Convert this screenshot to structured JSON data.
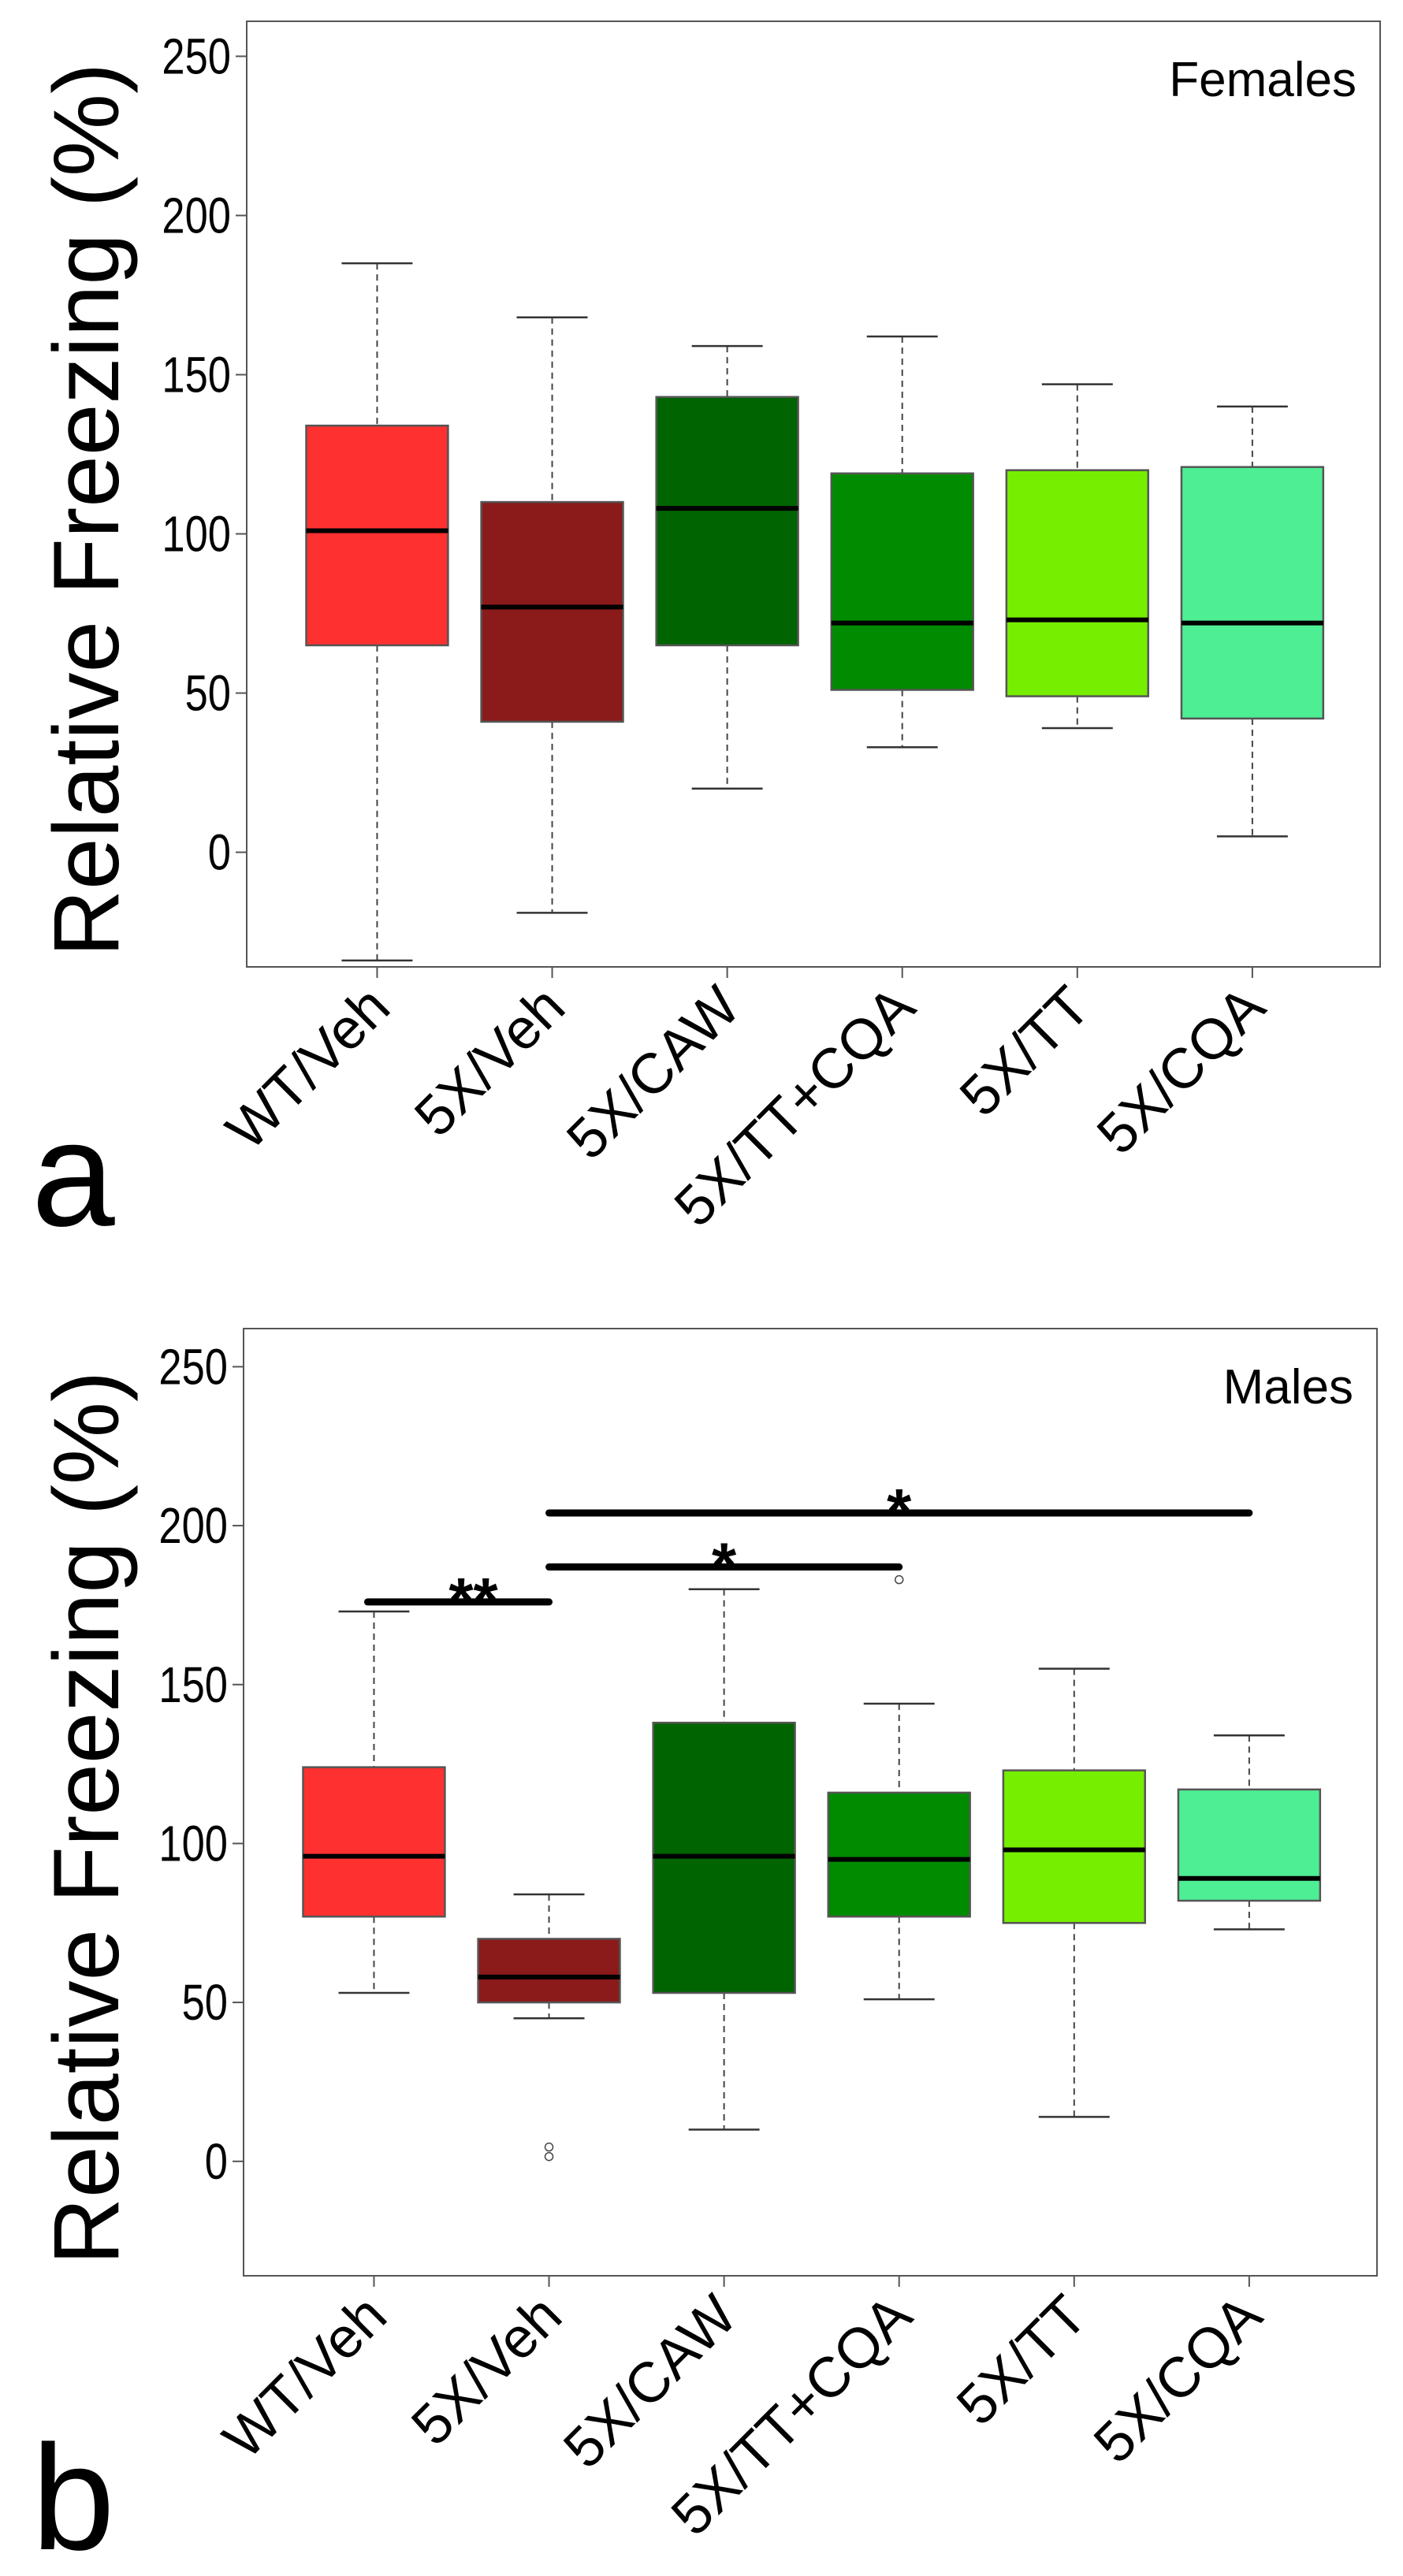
{
  "chart_data": [
    {
      "type": "boxplot",
      "panel_letter": "a",
      "title": "Females",
      "ylabel": "Relative Freezing (%)",
      "xlabel": "",
      "ylim": [
        -36,
        261
      ],
      "yticks": [
        0,
        50,
        100,
        150,
        200,
        250
      ],
      "grid": false,
      "categories": [
        "WT/Veh",
        "5X/Veh",
        "5X/CAW",
        "5X/TT+CQA",
        "5X/TT",
        "5X/CQA"
      ],
      "colors": [
        "#ff3030",
        "#8b1a1a",
        "#006400",
        "#008b00",
        "#76ee00",
        "#4eee94"
      ],
      "boxes": [
        {
          "whisker_low": -34,
          "q1": 65,
          "median": 101,
          "q3": 134,
          "whisker_high": 185,
          "outliers": []
        },
        {
          "whisker_low": -19,
          "q1": 41,
          "median": 77,
          "q3": 110,
          "whisker_high": 168,
          "outliers": []
        },
        {
          "whisker_low": 20,
          "q1": 65,
          "median": 108,
          "q3": 143,
          "whisker_high": 159,
          "outliers": []
        },
        {
          "whisker_low": 33,
          "q1": 51,
          "median": 72,
          "q3": 119,
          "whisker_high": 162,
          "outliers": []
        },
        {
          "whisker_low": 39,
          "q1": 49,
          "median": 73,
          "q3": 120,
          "whisker_high": 147,
          "outliers": []
        },
        {
          "whisker_low": 5,
          "q1": 42,
          "median": 72,
          "q3": 121,
          "whisker_high": 140,
          "outliers": []
        }
      ],
      "significance": []
    },
    {
      "type": "boxplot",
      "panel_letter": "b",
      "title": "Males",
      "ylabel": "Relative Freezing (%)",
      "xlabel": "",
      "ylim": [
        -36,
        262
      ],
      "yticks": [
        0,
        50,
        100,
        150,
        200,
        250
      ],
      "grid": false,
      "categories": [
        "WT/Veh",
        "5X/Veh",
        "5X/CAW",
        "5X/TT+CQA",
        "5X/TT",
        "5X/CQA"
      ],
      "colors": [
        "#ff3030",
        "#8b1a1a",
        "#006400",
        "#008b00",
        "#76ee00",
        "#4eee94"
      ],
      "boxes": [
        {
          "whisker_low": 53,
          "q1": 77,
          "median": 96,
          "q3": 124,
          "whisker_high": 173,
          "outliers": []
        },
        {
          "whisker_low": 45,
          "q1": 50,
          "median": 58,
          "q3": 70,
          "whisker_high": 84,
          "outliers": [
            1.5,
            4.5
          ]
        },
        {
          "whisker_low": 10,
          "q1": 53,
          "median": 96,
          "q3": 138,
          "whisker_high": 180,
          "outliers": []
        },
        {
          "whisker_low": 51,
          "q1": 77,
          "median": 95,
          "q3": 116,
          "whisker_high": 144,
          "outliers": [
            183
          ]
        },
        {
          "whisker_low": 14,
          "q1": 75,
          "median": 98,
          "q3": 123,
          "whisker_high": 155,
          "outliers": []
        },
        {
          "whisker_low": 73,
          "q1": 82,
          "median": 89,
          "q3": 117,
          "whisker_high": 134,
          "outliers": []
        }
      ],
      "significance": [
        {
          "from": 1,
          "to": 2,
          "y": 176,
          "label": "**"
        },
        {
          "from": 2,
          "to": 4,
          "y": 187,
          "label": "*"
        },
        {
          "from": 2,
          "to": 6,
          "y": 204,
          "label": "*"
        }
      ]
    }
  ]
}
